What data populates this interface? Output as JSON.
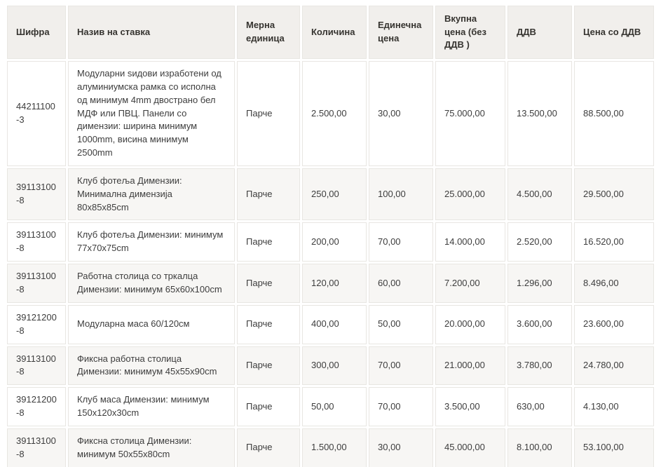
{
  "page": {
    "background": "#ffffff"
  },
  "colors": {
    "header_bg": "#f1efec",
    "row_bg": "#ffffff",
    "row_alt_bg": "#f7f6f4",
    "partial_row_bg": "#efede9",
    "cell_border": "#e8e6e2",
    "text": "#3d3d3d"
  },
  "table": {
    "columns": [
      {
        "key": "code",
        "label": "Шифра"
      },
      {
        "key": "name",
        "label": "Назив на ставка"
      },
      {
        "key": "unit",
        "label": "Мерна единица"
      },
      {
        "key": "quantity",
        "label": "Количина"
      },
      {
        "key": "unit_price",
        "label": "Единечна цена"
      },
      {
        "key": "total_no_vat",
        "label": "Вкупна цена (без ДДВ )"
      },
      {
        "key": "vat",
        "label": "ДДВ"
      },
      {
        "key": "price_with_vat",
        "label": "Цена со ДДВ"
      }
    ],
    "rows": [
      {
        "code": "44211100-3",
        "name": "Модуларни ѕидови изработени од алуминиумска рамка со исполна од минимум 4mm двострано бел МДФ или ПВЦ. Панели со димензии: ширина минимум 1000mm, висина минимум 2500mm",
        "unit": "Парче",
        "quantity": "2.500,00",
        "unit_price": "30,00",
        "total_no_vat": "75.000,00",
        "vat": "13.500,00",
        "price_with_vat": "88.500,00"
      },
      {
        "code": "39113100-8",
        "name": "Клуб фотеља Димензии: Минимална димензија 80x85x85cm",
        "unit": "Парче",
        "quantity": "250,00",
        "unit_price": "100,00",
        "total_no_vat": "25.000,00",
        "vat": "4.500,00",
        "price_with_vat": "29.500,00"
      },
      {
        "code": "39113100-8",
        "name": "Клуб фотеља Димензии: минимум 77x70x75cm",
        "unit": "Парче",
        "quantity": "200,00",
        "unit_price": "70,00",
        "total_no_vat": "14.000,00",
        "vat": "2.520,00",
        "price_with_vat": "16.520,00"
      },
      {
        "code": "39113100-8",
        "name": "Работна столица со тркалца Димензии: минимум 65x60x100cm",
        "unit": "Парче",
        "quantity": "120,00",
        "unit_price": "60,00",
        "total_no_vat": "7.200,00",
        "vat": "1.296,00",
        "price_with_vat": "8.496,00"
      },
      {
        "code": "39121200-8",
        "name": "Модуларна маса 60/120см",
        "unit": "Парче",
        "quantity": "400,00",
        "unit_price": "50,00",
        "total_no_vat": "20.000,00",
        "vat": "3.600,00",
        "price_with_vat": "23.600,00"
      },
      {
        "code": "39113100-8",
        "name": "Фиксна работна столица Димензии: минимум 45x55x90cm",
        "unit": "Парче",
        "quantity": "300,00",
        "unit_price": "70,00",
        "total_no_vat": "21.000,00",
        "vat": "3.780,00",
        "price_with_vat": "24.780,00"
      },
      {
        "code": "39121200-8",
        "name": "Клуб маса Димензии: минимум 150x120x30cm",
        "unit": "Парче",
        "quantity": "50,00",
        "unit_price": "70,00",
        "total_no_vat": "3.500,00",
        "vat": "630,00",
        "price_with_vat": "4.130,00"
      },
      {
        "code": "39113100-8",
        "name": "Фиксна столица Димензии: минимум 50x55x80cm",
        "unit": "Парче",
        "quantity": "1.500,00",
        "unit_price": "30,00",
        "total_no_vat": "45.000,00",
        "vat": "8.100,00",
        "price_with_vat": "53.100,00"
      }
    ]
  }
}
